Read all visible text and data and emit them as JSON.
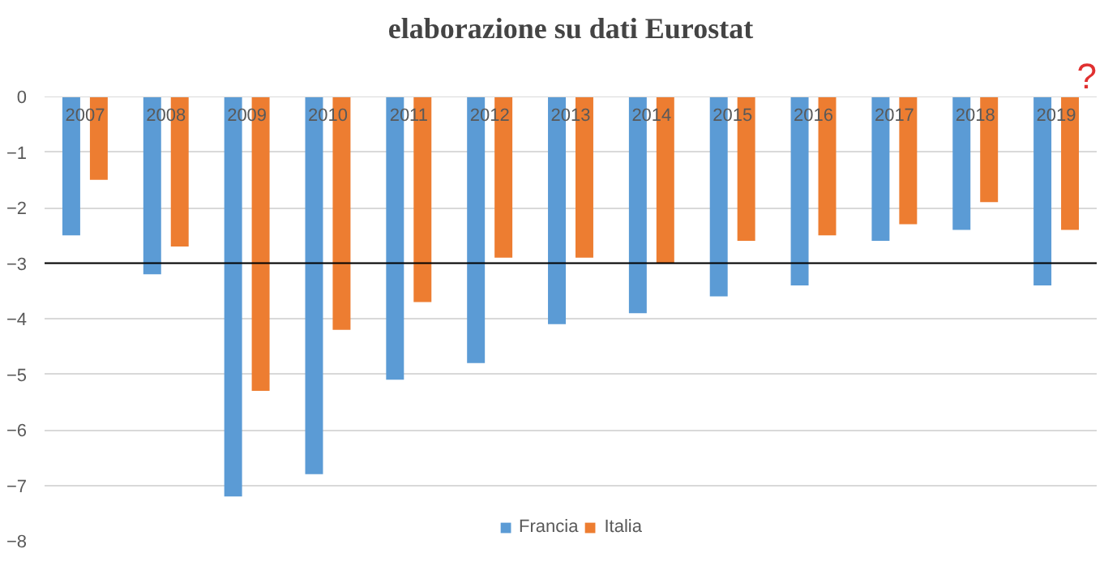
{
  "chart_data": {
    "type": "bar",
    "title": "elaborazione su dati Eurostat",
    "categories": [
      "2007",
      "2008",
      "2009",
      "2010",
      "2011",
      "2012",
      "2013",
      "2014",
      "2015",
      "2016",
      "2017",
      "2018",
      "2019"
    ],
    "series": [
      {
        "name": "Francia",
        "color": "#5b9bd5",
        "values": [
          -2.5,
          -3.2,
          -7.2,
          -6.8,
          -5.1,
          -4.8,
          -4.1,
          -3.9,
          -3.6,
          -3.4,
          -2.6,
          -2.4,
          -3.4
        ]
      },
      {
        "name": "Italia",
        "color": "#ed7d31",
        "values": [
          -1.5,
          -2.7,
          -5.3,
          -4.2,
          -3.7,
          -2.9,
          -2.9,
          -3.0,
          -2.6,
          -2.5,
          -2.3,
          -1.9,
          -2.4
        ]
      }
    ],
    "ylim": [
      -8,
      0
    ],
    "yticks": [
      0,
      -1,
      -2,
      -3,
      -4,
      -5,
      -6,
      -7,
      -8
    ],
    "ref_lines": [
      {
        "axis": "y",
        "value": -3,
        "color": "#000000"
      }
    ],
    "annotations": [
      "?"
    ],
    "grid": "y",
    "legend": "bottom"
  }
}
